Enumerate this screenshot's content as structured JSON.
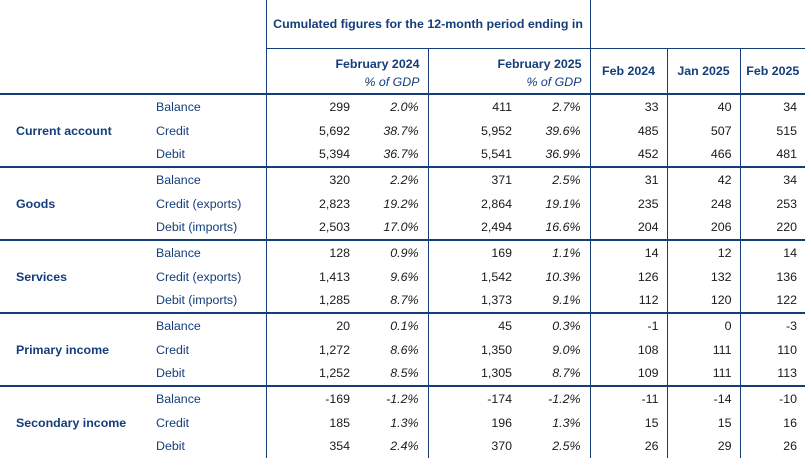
{
  "header": {
    "cumulated_title": "Cumulated figures for the 12-month period ending in",
    "periods": [
      {
        "label": "February 2024",
        "pct_label": "% of GDP"
      },
      {
        "label": "February 2025",
        "pct_label": "% of GDP"
      }
    ],
    "months": [
      "Feb 2024",
      "Jan 2025",
      "Feb 2025"
    ]
  },
  "sections": [
    {
      "name": "Current account",
      "rows": [
        {
          "label": "Balance",
          "v2024": "299",
          "p2024": "2.0%",
          "v2025": "411",
          "p2025": "2.7%",
          "m": [
            "33",
            "40",
            "34"
          ]
        },
        {
          "label": "Credit",
          "v2024": "5,692",
          "p2024": "38.7%",
          "v2025": "5,952",
          "p2025": "39.6%",
          "m": [
            "485",
            "507",
            "515"
          ]
        },
        {
          "label": "Debit",
          "v2024": "5,394",
          "p2024": "36.7%",
          "v2025": "5,541",
          "p2025": "36.9%",
          "m": [
            "452",
            "466",
            "481"
          ]
        }
      ]
    },
    {
      "name": "Goods",
      "rows": [
        {
          "label": "Balance",
          "v2024": "320",
          "p2024": "2.2%",
          "v2025": "371",
          "p2025": "2.5%",
          "m": [
            "31",
            "42",
            "34"
          ]
        },
        {
          "label": "Credit (exports)",
          "v2024": "2,823",
          "p2024": "19.2%",
          "v2025": "2,864",
          "p2025": "19.1%",
          "m": [
            "235",
            "248",
            "253"
          ]
        },
        {
          "label": "Debit (imports)",
          "v2024": "2,503",
          "p2024": "17.0%",
          "v2025": "2,494",
          "p2025": "16.6%",
          "m": [
            "204",
            "206",
            "220"
          ]
        }
      ]
    },
    {
      "name": "Services",
      "rows": [
        {
          "label": "Balance",
          "v2024": "128",
          "p2024": "0.9%",
          "v2025": "169",
          "p2025": "1.1%",
          "m": [
            "14",
            "12",
            "14"
          ]
        },
        {
          "label": "Credit (exports)",
          "v2024": "1,413",
          "p2024": "9.6%",
          "v2025": "1,542",
          "p2025": "10.3%",
          "m": [
            "126",
            "132",
            "136"
          ]
        },
        {
          "label": "Debit (imports)",
          "v2024": "1,285",
          "p2024": "8.7%",
          "v2025": "1,373",
          "p2025": "9.1%",
          "m": [
            "112",
            "120",
            "122"
          ]
        }
      ]
    },
    {
      "name": "Primary income",
      "rows": [
        {
          "label": "Balance",
          "v2024": "20",
          "p2024": "0.1%",
          "v2025": "45",
          "p2025": "0.3%",
          "m": [
            "-1",
            "0",
            "-3"
          ]
        },
        {
          "label": "Credit",
          "v2024": "1,272",
          "p2024": "8.6%",
          "v2025": "1,350",
          "p2025": "9.0%",
          "m": [
            "108",
            "111",
            "110"
          ]
        },
        {
          "label": "Debit",
          "v2024": "1,252",
          "p2024": "8.5%",
          "v2025": "1,305",
          "p2025": "8.7%",
          "m": [
            "109",
            "111",
            "113"
          ]
        }
      ]
    },
    {
      "name": "Secondary income",
      "rows": [
        {
          "label": "Balance",
          "v2024": "-169",
          "p2024": "-1.2%",
          "v2025": "-174",
          "p2025": "-1.2%",
          "m": [
            "-11",
            "-14",
            "-10"
          ]
        },
        {
          "label": "Credit",
          "v2024": "185",
          "p2024": "1.3%",
          "v2025": "196",
          "p2025": "1.3%",
          "m": [
            "15",
            "15",
            "16"
          ]
        },
        {
          "label": "Debit",
          "v2024": "354",
          "p2024": "2.4%",
          "v2025": "370",
          "p2025": "2.5%",
          "m": [
            "26",
            "29",
            "26"
          ]
        }
      ]
    }
  ]
}
